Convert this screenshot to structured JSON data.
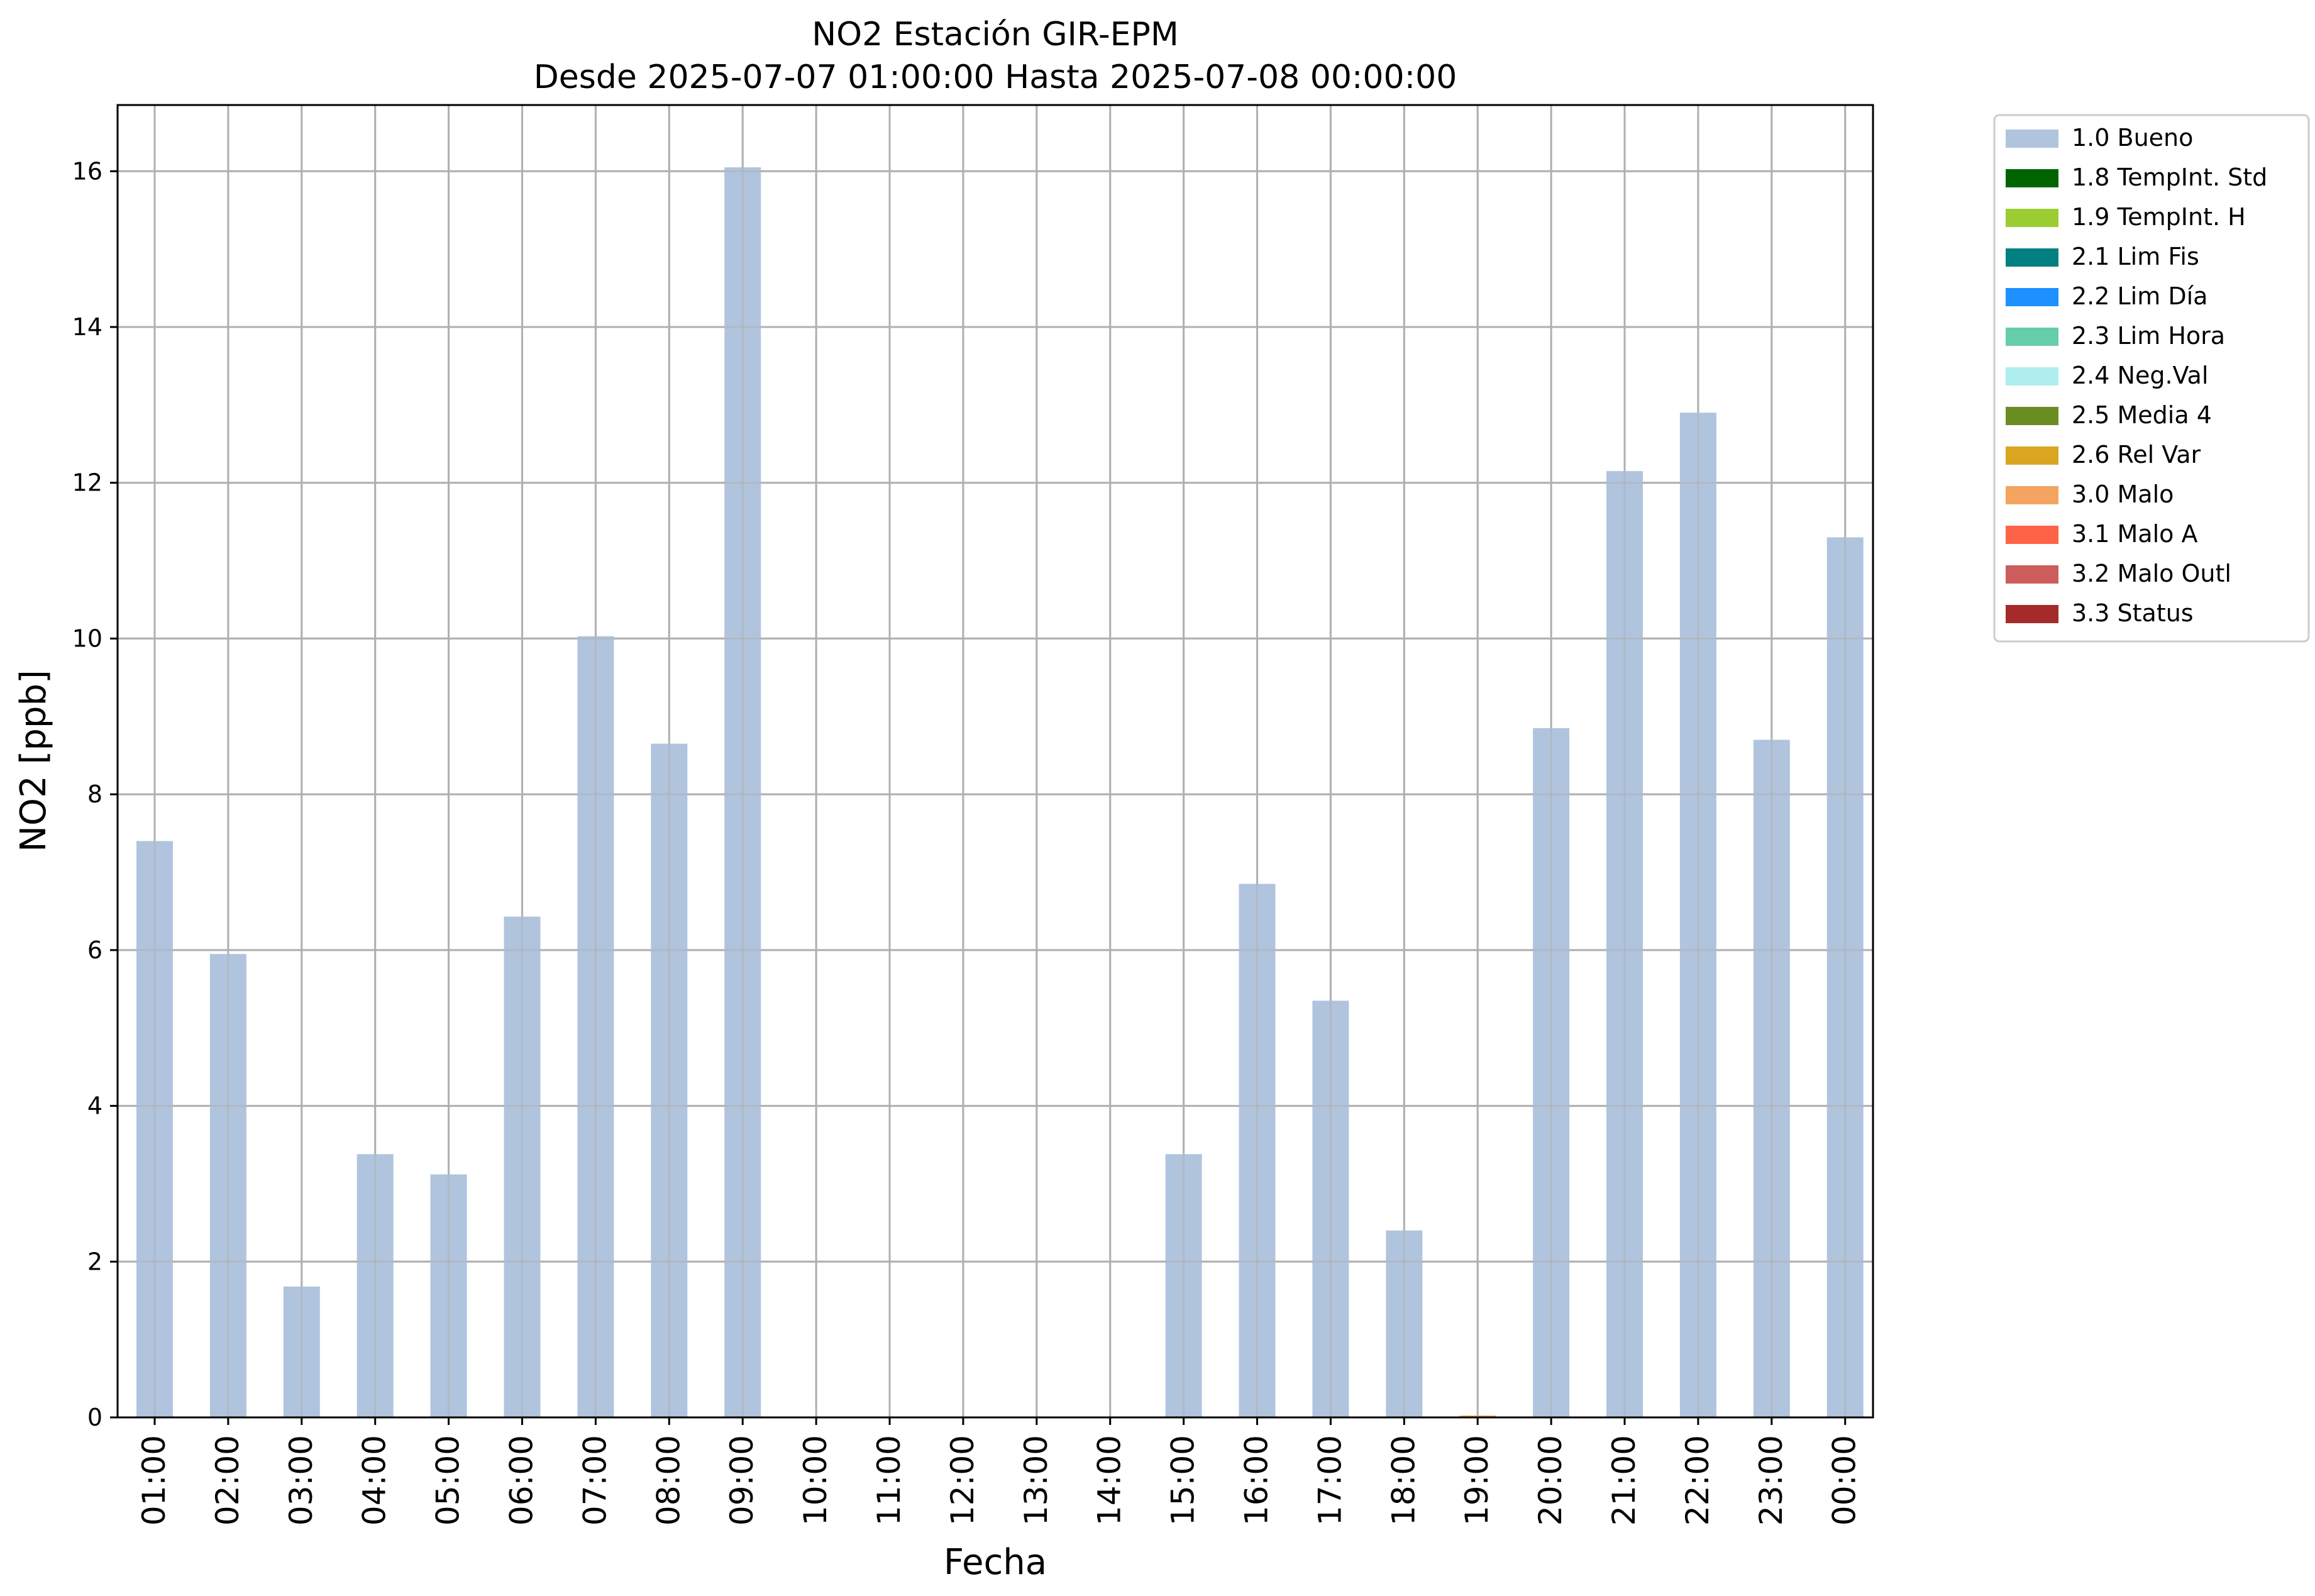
{
  "chart_data": {
    "type": "bar",
    "title": "NO2 Estación GIR-EPM",
    "subtitle": "Desde 2025-07-07 01:00:00 Hasta 2025-07-08 00:00:00",
    "xlabel": "Fecha",
    "ylabel": "NO2 [ppb]",
    "ylim": [
      0,
      16.85
    ],
    "yticks": [
      0,
      2,
      4,
      6,
      8,
      10,
      12,
      14,
      16
    ],
    "grid": true,
    "legend_position": "outside-top-right",
    "categories": [
      "01:00",
      "02:00",
      "03:00",
      "04:00",
      "05:00",
      "06:00",
      "07:00",
      "08:00",
      "09:00",
      "10:00",
      "11:00",
      "12:00",
      "13:00",
      "14:00",
      "15:00",
      "16:00",
      "17:00",
      "18:00",
      "19:00",
      "20:00",
      "21:00",
      "22:00",
      "23:00",
      "00:00"
    ],
    "series": [
      {
        "name": "1.0 Bueno",
        "color": "#b0c4de",
        "values": [
          7.4,
          5.95,
          1.68,
          3.38,
          3.12,
          6.43,
          10.03,
          8.65,
          16.05,
          0,
          0,
          0,
          0,
          0,
          3.38,
          6.85,
          5.35,
          2.4,
          0,
          8.85,
          12.15,
          12.9,
          8.7,
          11.3
        ]
      },
      {
        "name": "1.8 TempInt. Std",
        "color": "#006400",
        "values": [
          0,
          0,
          0,
          0,
          0,
          0,
          0,
          0,
          0,
          0,
          0,
          0,
          0,
          0,
          0,
          0,
          0,
          0,
          0,
          0,
          0,
          0,
          0,
          0
        ]
      },
      {
        "name": "1.9 TempInt. H",
        "color": "#9acd32",
        "values": [
          0,
          0,
          0,
          0,
          0,
          0,
          0,
          0,
          0,
          0,
          0,
          0,
          0,
          0,
          0,
          0,
          0,
          0,
          0,
          0,
          0,
          0,
          0,
          0
        ]
      },
      {
        "name": "2.1 Lim Fis",
        "color": "#008080",
        "values": [
          0,
          0,
          0,
          0,
          0,
          0,
          0,
          0,
          0,
          0,
          0,
          0,
          0,
          0,
          0,
          0,
          0,
          0,
          0,
          0,
          0,
          0,
          0,
          0
        ]
      },
      {
        "name": "2.2 Lim Día",
        "color": "#1e90ff",
        "values": [
          0,
          0,
          0,
          0,
          0,
          0,
          0,
          0,
          0,
          0,
          0,
          0,
          0,
          0,
          0,
          0,
          0,
          0,
          0,
          0,
          0,
          0,
          0,
          0
        ]
      },
      {
        "name": "2.3 Lim Hora",
        "color": "#66cdaa",
        "values": [
          0,
          0,
          0,
          0,
          0,
          0,
          0,
          0,
          0,
          0,
          0,
          0,
          0,
          0,
          0,
          0,
          0,
          0,
          0,
          0,
          0,
          0,
          0,
          0
        ]
      },
      {
        "name": "2.4 Neg.Val",
        "color": "#afeeee",
        "values": [
          0,
          0,
          0,
          0,
          0,
          0,
          0,
          0,
          0,
          0,
          0,
          0,
          0,
          0,
          0,
          0,
          0,
          0,
          0,
          0,
          0,
          0,
          0,
          0
        ]
      },
      {
        "name": "2.5 Media 4",
        "color": "#6b8e23",
        "values": [
          0,
          0,
          0,
          0,
          0,
          0,
          0,
          0,
          0,
          0,
          0,
          0,
          0,
          0,
          0,
          0,
          0,
          0,
          0,
          0,
          0,
          0,
          0,
          0
        ]
      },
      {
        "name": "2.6 Rel Var",
        "color": "#daa520",
        "values": [
          0,
          0,
          0,
          0,
          0,
          0,
          0,
          0,
          0,
          0,
          0,
          0,
          0,
          0,
          0,
          0,
          0,
          0,
          0,
          0,
          0,
          0,
          0,
          0
        ]
      },
      {
        "name": "3.0 Malo",
        "color": "#f4a460",
        "values": [
          0,
          0,
          0,
          0,
          0,
          0,
          0,
          0,
          0,
          0,
          0,
          0,
          0,
          0,
          0,
          0,
          0,
          0,
          0.02,
          0,
          0,
          0,
          0,
          0
        ]
      },
      {
        "name": "3.1 Malo A",
        "color": "#ff6347",
        "values": [
          0,
          0,
          0,
          0,
          0,
          0,
          0,
          0,
          0,
          0,
          0,
          0,
          0,
          0,
          0,
          0,
          0,
          0,
          0,
          0,
          0,
          0,
          0,
          0
        ]
      },
      {
        "name": "3.2 Malo Outl",
        "color": "#cd5c5c",
        "values": [
          0,
          0,
          0,
          0,
          0,
          0,
          0,
          0,
          0,
          0,
          0,
          0,
          0,
          0,
          0,
          0,
          0,
          0,
          0,
          0,
          0,
          0,
          0,
          0
        ]
      },
      {
        "name": "3.3 Status",
        "color": "#a52a2a",
        "values": [
          0,
          0,
          0,
          0,
          0,
          0,
          0,
          0,
          0,
          0,
          0,
          0,
          0,
          0,
          0,
          0,
          0,
          0,
          0,
          0,
          0,
          0,
          0,
          0
        ]
      }
    ]
  }
}
